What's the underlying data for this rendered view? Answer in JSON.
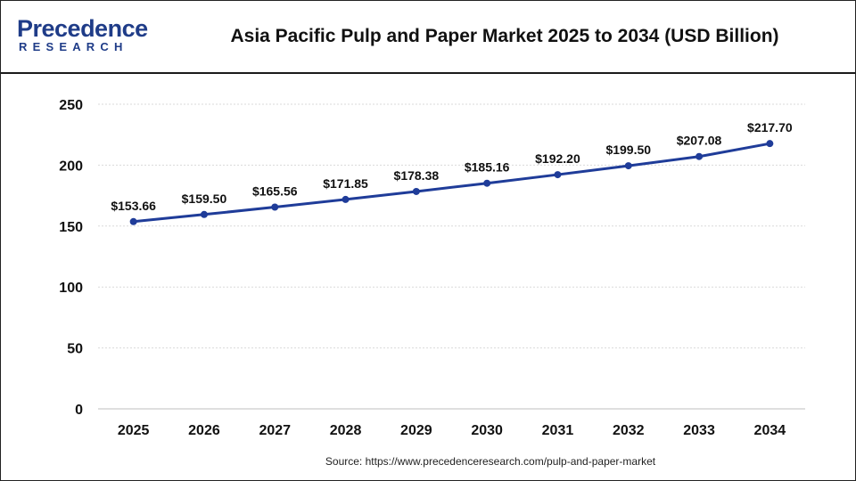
{
  "brand": {
    "name": "Precedence",
    "tagline": "RESEARCH",
    "color": "#1f3c88"
  },
  "source_text": "Source: https://www.precedenceresearch.com/pulp-and-paper-market",
  "chart_data": {
    "type": "line",
    "title": "Asia Pacific Pulp and Paper Market 2025 to 2034 (USD Billion)",
    "xlabel": "",
    "ylabel": "",
    "categories": [
      "2025",
      "2026",
      "2027",
      "2028",
      "2029",
      "2030",
      "2031",
      "2032",
      "2033",
      "2034"
    ],
    "series": [
      {
        "values": [
          153.66,
          159.5,
          165.56,
          171.85,
          178.38,
          185.16,
          192.2,
          199.5,
          207.08,
          217.7
        ],
        "labels": [
          "$153.66",
          "$159.50",
          "$165.56",
          "$171.85",
          "$178.38",
          "$185.16",
          "$192.20",
          "$199.50",
          "$207.08",
          "$217.70"
        ],
        "color": "#1f3c99"
      }
    ],
    "ylim": [
      0,
      250
    ],
    "yticks": [
      0,
      50,
      100,
      150,
      200,
      250
    ],
    "grid": true,
    "legend": "none"
  }
}
